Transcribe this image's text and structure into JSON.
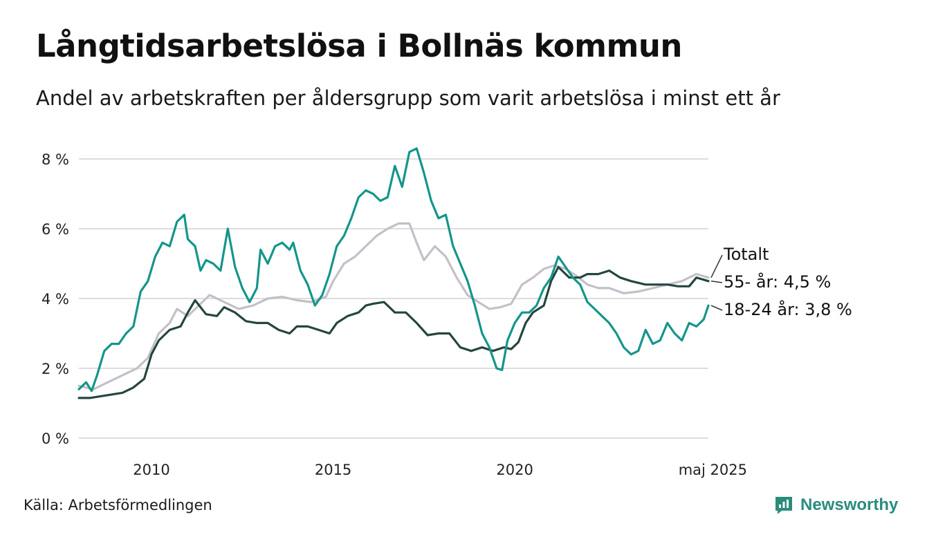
{
  "title": "Långtidsarbetslösa i Bollnäs kommun",
  "subtitle": "Andel av arbetskraften per åldersgrupp som varit arbetslösa i minst ett år",
  "source": "Källa: Arbetsförmedlingen",
  "brand": "Newsworthy",
  "colors": {
    "brand": "#2a8c7c",
    "grid": "#dddddd",
    "totalt": "#c4bfc9",
    "age55": "#24463f",
    "age1824": "#14958a"
  },
  "chart_data": {
    "type": "line",
    "y_unit": "%",
    "ylim": [
      0,
      8.5
    ],
    "grid": true,
    "y_ticks": [
      {
        "value": 0,
        "label": "0 %"
      },
      {
        "value": 2,
        "label": "2 %"
      },
      {
        "value": 4,
        "label": "4 %"
      },
      {
        "value": 6,
        "label": "6 %"
      },
      {
        "value": 8,
        "label": "8 %"
      }
    ],
    "x_range": [
      2008.0,
      2025.33
    ],
    "x_ticks": [
      {
        "value": 2010,
        "label": "2010"
      },
      {
        "value": 2015,
        "label": "2015"
      },
      {
        "value": 2020,
        "label": "2020"
      },
      {
        "value": 2025.33,
        "label": "maj 2025"
      }
    ],
    "series": [
      {
        "key": "totalt",
        "name": "Totalt",
        "points": [
          [
            2008.0,
            1.5
          ],
          [
            2008.4,
            1.4
          ],
          [
            2008.8,
            1.6
          ],
          [
            2009.2,
            1.8
          ],
          [
            2009.6,
            2.0
          ],
          [
            2009.9,
            2.3
          ],
          [
            2010.2,
            3.0
          ],
          [
            2010.5,
            3.3
          ],
          [
            2010.7,
            3.7
          ],
          [
            2011.0,
            3.5
          ],
          [
            2011.3,
            3.8
          ],
          [
            2011.6,
            4.1
          ],
          [
            2012.0,
            3.9
          ],
          [
            2012.4,
            3.7
          ],
          [
            2012.8,
            3.8
          ],
          [
            2013.2,
            4.0
          ],
          [
            2013.6,
            4.05
          ],
          [
            2014.0,
            3.95
          ],
          [
            2014.4,
            3.9
          ],
          [
            2014.8,
            4.05
          ],
          [
            2015.0,
            4.5
          ],
          [
            2015.3,
            5.0
          ],
          [
            2015.6,
            5.2
          ],
          [
            2015.9,
            5.5
          ],
          [
            2016.2,
            5.8
          ],
          [
            2016.5,
            6.0
          ],
          [
            2016.8,
            6.15
          ],
          [
            2017.1,
            6.15
          ],
          [
            2017.3,
            5.6
          ],
          [
            2017.5,
            5.1
          ],
          [
            2017.8,
            5.5
          ],
          [
            2018.1,
            5.2
          ],
          [
            2018.4,
            4.6
          ],
          [
            2018.7,
            4.1
          ],
          [
            2019.0,
            3.9
          ],
          [
            2019.3,
            3.7
          ],
          [
            2019.6,
            3.75
          ],
          [
            2019.9,
            3.85
          ],
          [
            2020.2,
            4.4
          ],
          [
            2020.5,
            4.6
          ],
          [
            2020.8,
            4.85
          ],
          [
            2021.1,
            4.95
          ],
          [
            2021.4,
            4.85
          ],
          [
            2021.7,
            4.65
          ],
          [
            2022.0,
            4.4
          ],
          [
            2022.3,
            4.3
          ],
          [
            2022.6,
            4.3
          ],
          [
            2023.0,
            4.15
          ],
          [
            2023.4,
            4.2
          ],
          [
            2023.8,
            4.3
          ],
          [
            2024.2,
            4.4
          ],
          [
            2024.6,
            4.5
          ],
          [
            2025.0,
            4.7
          ],
          [
            2025.33,
            4.6
          ]
        ]
      },
      {
        "key": "age55",
        "name": "55- år",
        "end_value": "4,5 %",
        "points": [
          [
            2008.0,
            1.15
          ],
          [
            2008.3,
            1.15
          ],
          [
            2008.6,
            1.2
          ],
          [
            2008.9,
            1.25
          ],
          [
            2009.2,
            1.3
          ],
          [
            2009.5,
            1.45
          ],
          [
            2009.8,
            1.7
          ],
          [
            2010.0,
            2.4
          ],
          [
            2010.2,
            2.8
          ],
          [
            2010.5,
            3.1
          ],
          [
            2010.8,
            3.2
          ],
          [
            2011.0,
            3.6
          ],
          [
            2011.2,
            3.95
          ],
          [
            2011.5,
            3.55
          ],
          [
            2011.8,
            3.5
          ],
          [
            2012.0,
            3.75
          ],
          [
            2012.3,
            3.6
          ],
          [
            2012.6,
            3.35
          ],
          [
            2012.9,
            3.3
          ],
          [
            2013.2,
            3.3
          ],
          [
            2013.5,
            3.1
          ],
          [
            2013.8,
            3.0
          ],
          [
            2014.0,
            3.2
          ],
          [
            2014.3,
            3.2
          ],
          [
            2014.6,
            3.1
          ],
          [
            2014.9,
            3.0
          ],
          [
            2015.1,
            3.3
          ],
          [
            2015.4,
            3.5
          ],
          [
            2015.7,
            3.6
          ],
          [
            2015.9,
            3.8
          ],
          [
            2016.1,
            3.85
          ],
          [
            2016.4,
            3.9
          ],
          [
            2016.7,
            3.6
          ],
          [
            2017.0,
            3.6
          ],
          [
            2017.3,
            3.3
          ],
          [
            2017.6,
            2.95
          ],
          [
            2017.9,
            3.0
          ],
          [
            2018.2,
            3.0
          ],
          [
            2018.5,
            2.6
          ],
          [
            2018.8,
            2.5
          ],
          [
            2019.1,
            2.6
          ],
          [
            2019.4,
            2.5
          ],
          [
            2019.7,
            2.6
          ],
          [
            2019.9,
            2.55
          ],
          [
            2020.1,
            2.75
          ],
          [
            2020.3,
            3.3
          ],
          [
            2020.5,
            3.6
          ],
          [
            2020.8,
            3.8
          ],
          [
            2021.0,
            4.5
          ],
          [
            2021.2,
            4.9
          ],
          [
            2021.5,
            4.6
          ],
          [
            2021.8,
            4.6
          ],
          [
            2022.0,
            4.7
          ],
          [
            2022.3,
            4.7
          ],
          [
            2022.6,
            4.8
          ],
          [
            2022.9,
            4.6
          ],
          [
            2023.2,
            4.5
          ],
          [
            2023.6,
            4.4
          ],
          [
            2023.9,
            4.4
          ],
          [
            2024.2,
            4.4
          ],
          [
            2024.5,
            4.35
          ],
          [
            2024.8,
            4.35
          ],
          [
            2025.0,
            4.6
          ],
          [
            2025.33,
            4.5
          ]
        ]
      },
      {
        "key": "age1824",
        "name": "18-24 år",
        "end_value": "3,8 %",
        "points": [
          [
            2008.0,
            1.4
          ],
          [
            2008.2,
            1.6
          ],
          [
            2008.35,
            1.35
          ],
          [
            2008.5,
            1.8
          ],
          [
            2008.7,
            2.5
          ],
          [
            2008.9,
            2.7
          ],
          [
            2009.1,
            2.7
          ],
          [
            2009.3,
            3.0
          ],
          [
            2009.5,
            3.2
          ],
          [
            2009.7,
            4.2
          ],
          [
            2009.9,
            4.5
          ],
          [
            2010.1,
            5.2
          ],
          [
            2010.3,
            5.6
          ],
          [
            2010.5,
            5.5
          ],
          [
            2010.7,
            6.2
          ],
          [
            2010.9,
            6.4
          ],
          [
            2011.0,
            5.7
          ],
          [
            2011.2,
            5.5
          ],
          [
            2011.35,
            4.8
          ],
          [
            2011.5,
            5.1
          ],
          [
            2011.7,
            5.0
          ],
          [
            2011.9,
            4.8
          ],
          [
            2012.1,
            6.0
          ],
          [
            2012.3,
            4.9
          ],
          [
            2012.5,
            4.3
          ],
          [
            2012.7,
            3.9
          ],
          [
            2012.9,
            4.3
          ],
          [
            2013.0,
            5.4
          ],
          [
            2013.2,
            5.0
          ],
          [
            2013.4,
            5.5
          ],
          [
            2013.6,
            5.6
          ],
          [
            2013.8,
            5.4
          ],
          [
            2013.9,
            5.6
          ],
          [
            2014.1,
            4.8
          ],
          [
            2014.3,
            4.4
          ],
          [
            2014.5,
            3.8
          ],
          [
            2014.7,
            4.1
          ],
          [
            2014.9,
            4.7
          ],
          [
            2015.1,
            5.5
          ],
          [
            2015.3,
            5.8
          ],
          [
            2015.5,
            6.3
          ],
          [
            2015.7,
            6.9
          ],
          [
            2015.9,
            7.1
          ],
          [
            2016.1,
            7.0
          ],
          [
            2016.3,
            6.8
          ],
          [
            2016.5,
            6.9
          ],
          [
            2016.7,
            7.8
          ],
          [
            2016.9,
            7.2
          ],
          [
            2017.1,
            8.2
          ],
          [
            2017.3,
            8.3
          ],
          [
            2017.5,
            7.6
          ],
          [
            2017.7,
            6.8
          ],
          [
            2017.9,
            6.3
          ],
          [
            2018.1,
            6.4
          ],
          [
            2018.3,
            5.5
          ],
          [
            2018.5,
            5.0
          ],
          [
            2018.7,
            4.5
          ],
          [
            2018.9,
            3.8
          ],
          [
            2019.1,
            3.0
          ],
          [
            2019.3,
            2.6
          ],
          [
            2019.5,
            2.0
          ],
          [
            2019.65,
            1.95
          ],
          [
            2019.8,
            2.8
          ],
          [
            2020.0,
            3.3
          ],
          [
            2020.2,
            3.6
          ],
          [
            2020.4,
            3.6
          ],
          [
            2020.6,
            3.8
          ],
          [
            2020.8,
            4.3
          ],
          [
            2021.0,
            4.6
          ],
          [
            2021.2,
            5.2
          ],
          [
            2021.4,
            4.9
          ],
          [
            2021.6,
            4.6
          ],
          [
            2021.8,
            4.4
          ],
          [
            2022.0,
            3.9
          ],
          [
            2022.2,
            3.7
          ],
          [
            2022.4,
            3.5
          ],
          [
            2022.6,
            3.3
          ],
          [
            2022.8,
            3.0
          ],
          [
            2023.0,
            2.6
          ],
          [
            2023.2,
            2.4
          ],
          [
            2023.4,
            2.5
          ],
          [
            2023.6,
            3.1
          ],
          [
            2023.8,
            2.7
          ],
          [
            2024.0,
            2.8
          ],
          [
            2024.2,
            3.3
          ],
          [
            2024.4,
            3.0
          ],
          [
            2024.6,
            2.8
          ],
          [
            2024.8,
            3.3
          ],
          [
            2025.0,
            3.2
          ],
          [
            2025.2,
            3.4
          ],
          [
            2025.33,
            3.8
          ]
        ]
      }
    ],
    "end_labels": [
      {
        "series": "totalt",
        "text": "Totalt"
      },
      {
        "series": "age55",
        "text": "55- år: 4,5 %"
      },
      {
        "series": "age1824",
        "text": "18-24 år: 3,8 %"
      }
    ]
  }
}
